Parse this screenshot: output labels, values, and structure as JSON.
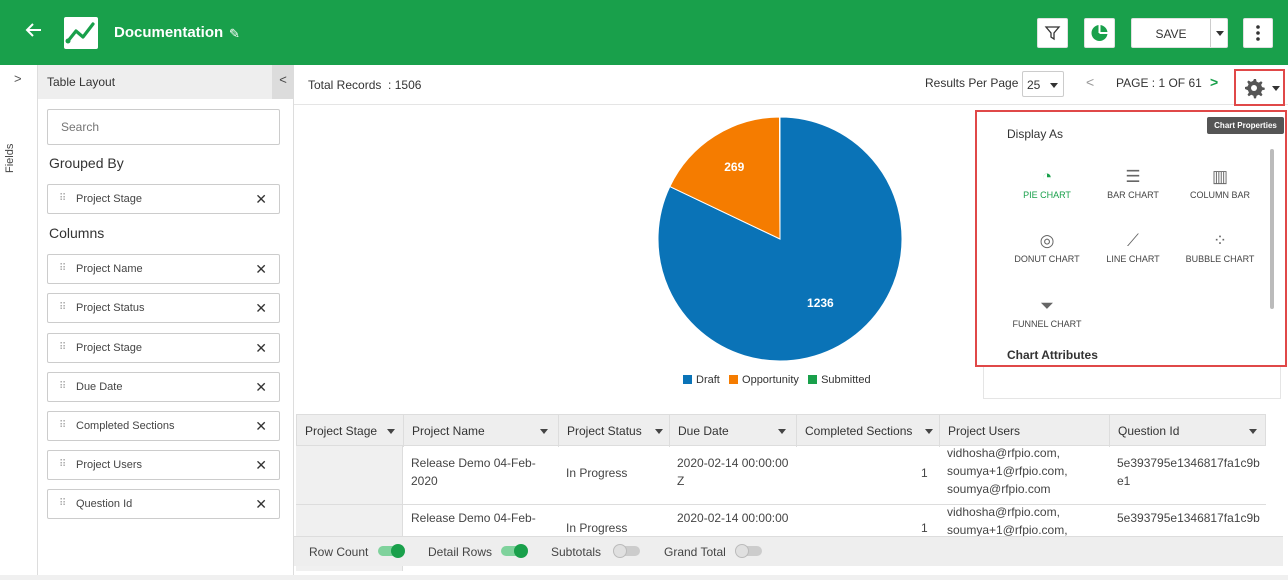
{
  "header": {
    "title": "Documentation",
    "save_label": "SAVE",
    "back_icon": "arrow-left-icon",
    "edit_icon": "pencil-icon",
    "logo_icon": "line-chart-logo-icon",
    "colors": {
      "brand": "#19a04b",
      "highlight": "#e04848"
    }
  },
  "rail": {
    "label": "Fields"
  },
  "panel": {
    "title": "Table Layout",
    "search_placeholder": "Search",
    "grouped_by_label": "Grouped By",
    "grouped_by": [
      "Project Stage"
    ],
    "columns_label": "Columns",
    "columns": [
      "Project Name",
      "Project Status",
      "Project Stage",
      "Due Date",
      "Completed Sections",
      "Project Users",
      "Question Id"
    ]
  },
  "records": {
    "label": "Total Records",
    "count": ": 1506",
    "per_page_label": "Results Per Page",
    "per_page": "25",
    "page_text": "PAGE : 1 OF 61"
  },
  "chart_data": {
    "type": "pie",
    "slices": [
      {
        "label": "Draft",
        "value": 1236,
        "color": "#0a73b7"
      },
      {
        "label": "Opportunity",
        "value": 269,
        "color": "#f57c00"
      },
      {
        "label": "Submitted",
        "value": 1,
        "color": "#19a04b"
      }
    ],
    "legend_position": "bottom"
  },
  "chart_properties": {
    "tooltip": "Chart Properties",
    "display_as_label": "Display As",
    "options": [
      {
        "label": "PIE CHART",
        "icon": "pie-chart-icon",
        "glyph": "◔",
        "active": true
      },
      {
        "label": "BAR CHART",
        "icon": "bar-chart-icon",
        "glyph": "☰",
        "active": false
      },
      {
        "label": "COLUMN BAR",
        "icon": "column-bar-icon",
        "glyph": "▥",
        "active": false
      },
      {
        "label": "DONUT CHART",
        "icon": "donut-chart-icon",
        "glyph": "◎",
        "active": false
      },
      {
        "label": "LINE CHART",
        "icon": "line-chart-icon",
        "glyph": "⟋",
        "active": false
      },
      {
        "label": "BUBBLE CHART",
        "icon": "bubble-chart-icon",
        "glyph": "⁘",
        "active": false
      },
      {
        "label": "FUNNEL CHART",
        "icon": "funnel-chart-icon",
        "glyph": "⏷",
        "active": false
      }
    ],
    "attributes_label": "Chart Attributes"
  },
  "table": {
    "headers": [
      "Project Stage",
      "Project Name",
      "Project Status",
      "Due Date",
      "Completed Sections",
      "Project Users",
      "Question Id"
    ],
    "rows": [
      {
        "project_name": [
          "Release Demo 04-Feb-",
          "2020"
        ],
        "status": "In Progress",
        "due_date": [
          "2020-02-14 00:00:00",
          "Z"
        ],
        "completed": "1",
        "users": [
          "vidhosha@rfpio.com,",
          "soumya+1@rfpio.com,",
          "soumya@rfpio.com"
        ],
        "question_id": [
          "5e393795e1346817fa1c9b",
          "e1"
        ]
      },
      {
        "project_name": [
          "Release Demo 04-Feb-",
          ""
        ],
        "status": "In Progress",
        "due_date": [
          "2020-02-14 00:00:00",
          ""
        ],
        "completed": "1",
        "users": [
          "vidhosha@rfpio.com,",
          "soumya+1@rfpio.com,",
          ""
        ],
        "question_id": [
          "5e393795e1346817fa1c9b",
          ""
        ]
      }
    ]
  },
  "footer": {
    "toggles": [
      {
        "label": "Row Count",
        "on": true
      },
      {
        "label": "Detail Rows",
        "on": true
      },
      {
        "label": "Subtotals",
        "on": false
      },
      {
        "label": "Grand Total",
        "on": false
      }
    ]
  }
}
